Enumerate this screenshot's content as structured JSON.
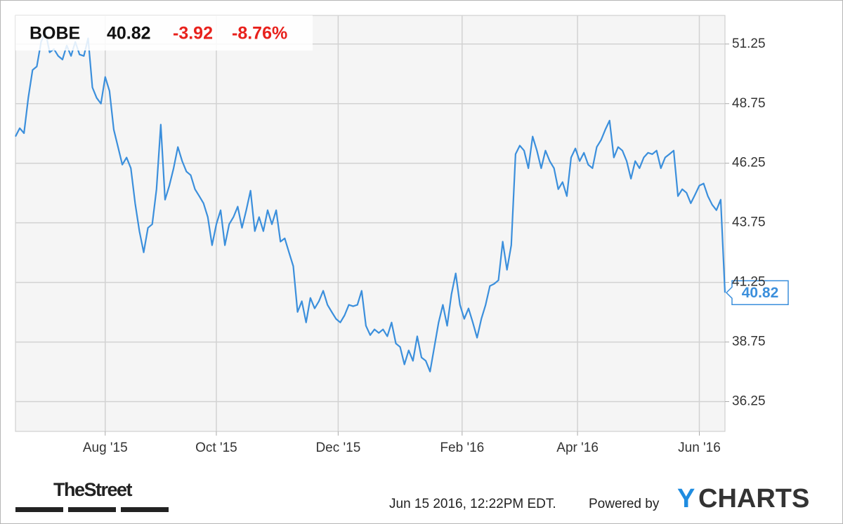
{
  "chart_data": {
    "type": "line",
    "header": {
      "ticker": "BOBE",
      "price": "40.82",
      "change": "-3.92",
      "change_pct": "-8.76%"
    },
    "series": [
      {
        "name": "BOBE",
        "color": "#3b8fdc",
        "values": [
          47.37,
          47.72,
          47.51,
          48.99,
          50.16,
          50.31,
          51.34,
          51.78,
          50.9,
          51.04,
          50.75,
          50.6,
          51.19,
          50.75,
          51.34,
          50.81,
          50.75,
          51.49,
          49.43,
          48.99,
          48.75,
          49.87,
          49.28,
          47.66,
          46.93,
          46.19,
          46.49,
          46.04,
          44.57,
          43.4,
          42.51,
          43.54,
          43.69,
          45.16,
          47.87,
          44.72,
          45.31,
          46.04,
          46.93,
          46.34,
          45.9,
          45.75,
          45.16,
          44.87,
          44.57,
          43.99,
          42.81,
          43.69,
          44.28,
          42.81,
          43.69,
          43.99,
          44.43,
          43.54,
          44.28,
          45.1,
          43.4,
          43.99,
          43.4,
          44.28,
          43.69,
          44.28,
          42.96,
          43.1,
          42.51,
          41.93,
          40.01,
          40.46,
          39.57,
          40.6,
          40.16,
          40.46,
          40.9,
          40.31,
          40.01,
          39.72,
          39.57,
          39.87,
          40.31,
          40.25,
          40.31,
          40.9,
          39.43,
          39.04,
          39.28,
          39.13,
          39.28,
          38.99,
          39.57,
          38.69,
          38.54,
          37.81,
          38.4,
          37.96,
          38.99,
          38.1,
          37.96,
          37.51,
          38.54,
          39.57,
          40.31,
          39.43,
          40.75,
          41.63,
          40.31,
          39.72,
          40.16,
          39.57,
          38.93,
          39.72,
          40.31,
          41.1,
          41.19,
          41.34,
          42.96,
          41.78,
          42.81,
          46.63,
          46.99,
          46.78,
          46.04,
          47.37,
          46.78,
          46.04,
          46.78,
          46.34,
          46.04,
          45.16,
          45.46,
          44.87,
          46.49,
          46.87,
          46.34,
          46.69,
          46.19,
          46.04,
          46.93,
          47.22,
          47.66,
          48.04,
          46.49,
          46.93,
          46.78,
          46.34,
          45.6,
          46.34,
          46.04,
          46.49,
          46.69,
          46.63,
          46.78,
          46.04,
          46.49,
          46.63,
          46.78,
          44.87,
          45.16,
          45.01,
          44.57,
          44.93,
          45.31,
          45.4,
          44.87,
          44.51,
          44.28,
          44.72,
          40.82
        ]
      }
    ],
    "xlim": [
      0,
      166
    ],
    "xticks": [
      {
        "value": 21,
        "label": "Aug '15"
      },
      {
        "value": 47,
        "label": "Oct '15"
      },
      {
        "value": 75.5,
        "label": "Dec '15"
      },
      {
        "value": 104.5,
        "label": "Feb '16"
      },
      {
        "value": 131.5,
        "label": "Apr '16"
      },
      {
        "value": 160,
        "label": "Jun '16"
      }
    ],
    "ylim": [
      35,
      52.45
    ],
    "yticks": [
      36.25,
      38.75,
      41.25,
      43.75,
      46.25,
      48.75,
      51.25
    ],
    "grid": true
  },
  "footer": {
    "brand": "TheStreet",
    "timestamp": "Jun 15 2016, 12:22PM EDT.",
    "powered_by": "Powered by",
    "logo_mark": "Y",
    "logo_text": "CHARTS"
  }
}
